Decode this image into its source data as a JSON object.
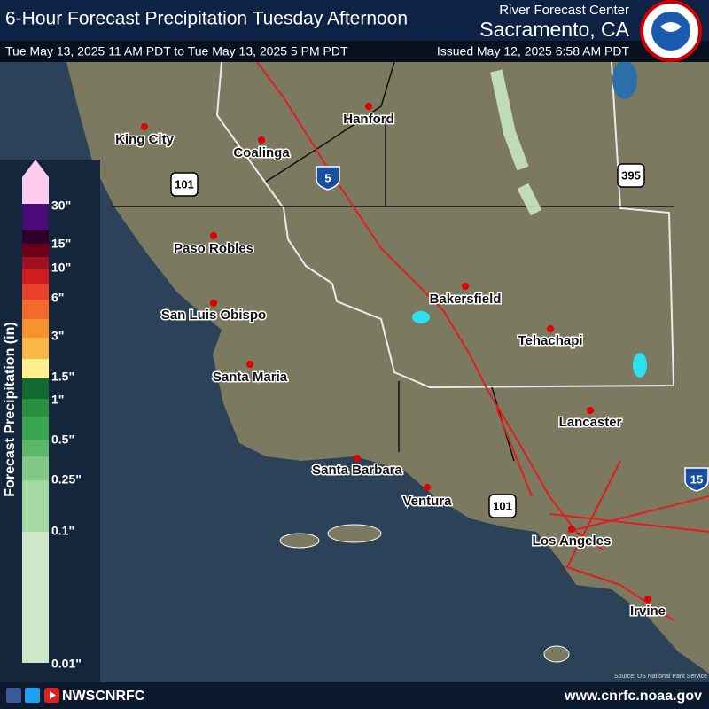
{
  "header": {
    "title": "6-Hour Forecast Precipitation Tuesday Afternoon",
    "agency": "River Forecast Center",
    "office": "Sacramento, CA",
    "valid": "Tue May 13, 2025 11 AM PDT to Tue May 13, 2025 5 PM PDT",
    "issued": "Issued May 12, 2025 6:58 AM PDT"
  },
  "legend": {
    "title": "Forecast Precipitation (in)",
    "labels": [
      "30\"",
      "15\"",
      "10\"",
      "6\"",
      "3\"",
      "1.5\"",
      "1\"",
      "0.5\"",
      "0.25\"",
      "0.1\"",
      "0.01\""
    ],
    "colors": [
      "#ffccf0",
      "#4a0a78",
      "#2c0028",
      "#6a0018",
      "#a01020",
      "#d01c1c",
      "#e8402a",
      "#f46a2c",
      "#f8922e",
      "#fbb848",
      "#fef08c",
      "#126a30",
      "#289040",
      "#38a650",
      "#5cb866",
      "#82c884",
      "#a6d8a2",
      "#cce8c8"
    ]
  },
  "cities": [
    "King City",
    "Coalinga",
    "Hanford",
    "Paso Robles",
    "San Luis Obispo",
    "Santa Maria",
    "Santa Barbara",
    "Ventura",
    "Bakersfield",
    "Tehachapi",
    "Lancaster",
    "Los Angeles",
    "Irvine"
  ],
  "highways": [
    "5",
    "101",
    "395",
    "15",
    "101"
  ],
  "source": "Source: US National Park Service",
  "footer": {
    "handle": "NWSCNRFC",
    "url": "www.cnrfc.noaa.gov"
  }
}
